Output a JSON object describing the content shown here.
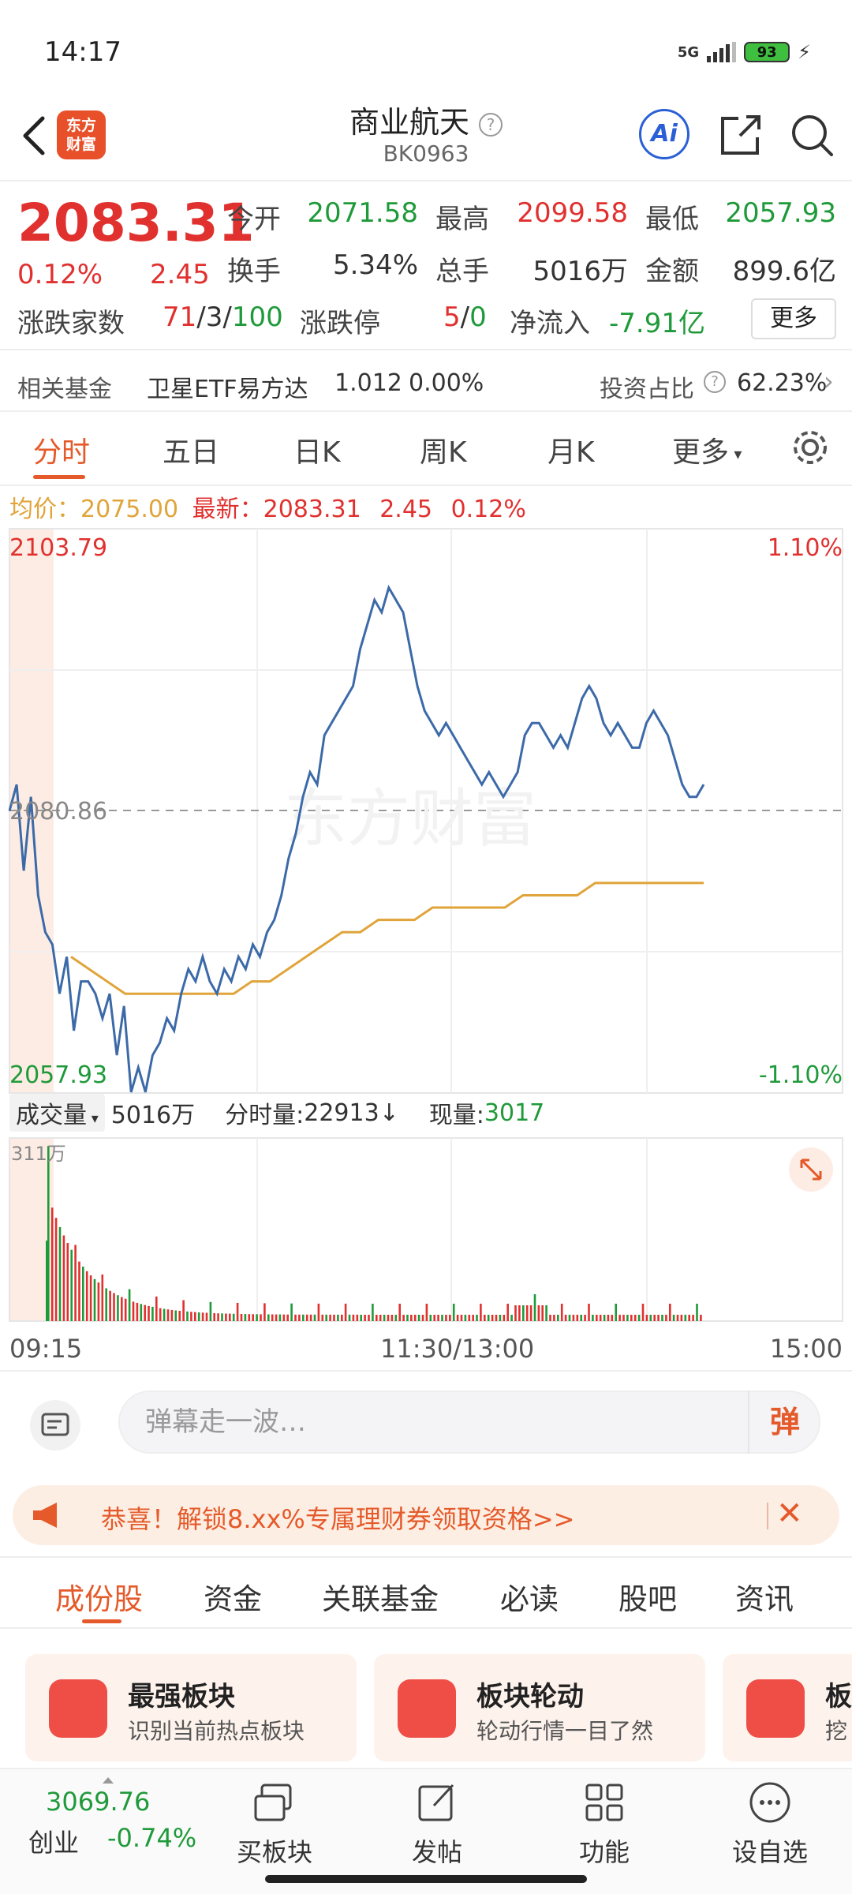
{
  "status_bar": {
    "time": "14:17",
    "network": "5G",
    "battery": "93"
  },
  "header": {
    "logo_text_1": "东方",
    "logo_text_2": "财富",
    "title": "商业航天",
    "code": "BK0963",
    "ai_label": "Ai"
  },
  "quote": {
    "price": "2083.31",
    "pct": "0.12%",
    "change": "2.45",
    "rows": [
      [
        {
          "label": "今开",
          "value": "2071.58",
          "color": "green"
        },
        {
          "label": "最高",
          "value": "2099.58",
          "color": "red"
        },
        {
          "label": "最低",
          "value": "2057.93",
          "color": "green"
        }
      ],
      [
        {
          "label": "换手",
          "value": "5.34%",
          "color": "dark"
        },
        {
          "label": "总手",
          "value": "5016万",
          "color": "dark"
        },
        {
          "label": "金额",
          "value": "899.6亿",
          "color": "dark"
        }
      ]
    ],
    "updown_label": "涨跌家数",
    "updown_up": "71",
    "updown_flat": "3",
    "updown_down": "100",
    "limit_label": "涨跌停",
    "limit_up": "5",
    "limit_down": "0",
    "netflow_label": "净流入",
    "netflow_value": "-7.91亿",
    "more_label": "更多"
  },
  "fund_row": {
    "label": "相关基金",
    "fund_name": "卫星ETF易方达",
    "fund_price": "1.012",
    "fund_pct": "0.00%",
    "ratio_label": "投资占比",
    "ratio_value": "62.23%"
  },
  "chart_tabs": [
    "分时",
    "五日",
    "日K",
    "周K",
    "月K",
    "更多"
  ],
  "avg_row": {
    "avg_label": "均价：",
    "avg_value": "2075.00",
    "latest_label": "最新：",
    "latest_value": "2083.31",
    "latest_change": "2.45",
    "latest_pct": "0.12%"
  },
  "chart_labels": {
    "top_left": "2103.79",
    "top_right": "1.10%",
    "mid_left": "2080.86",
    "bottom_left": "2057.93",
    "bottom_right": "-1.10%",
    "watermark": "东方财富"
  },
  "chart_data": {
    "type": "line",
    "ylim": [
      2057.93,
      2103.79
    ],
    "baseline": 2080.86,
    "series": [
      {
        "name": "最新",
        "values": [
          2080.86,
          2083,
          2076,
          2082,
          2074,
          2071,
          2070,
          2066,
          2069,
          2063,
          2067,
          2067,
          2066,
          2064,
          2066,
          2061,
          2065,
          2058,
          2060,
          2058,
          2061,
          2062,
          2064,
          2063,
          2066,
          2068,
          2067,
          2069,
          2067,
          2066,
          2068,
          2067,
          2069,
          2068,
          2070,
          2069,
          2071,
          2072,
          2074,
          2077,
          2079,
          2082,
          2084,
          2083,
          2087,
          2088,
          2089,
          2090,
          2091,
          2094,
          2096,
          2098,
          2097,
          2099,
          2098,
          2097,
          2094,
          2091,
          2089,
          2088,
          2087,
          2088,
          2087,
          2086,
          2085,
          2084,
          2083,
          2084,
          2083,
          2082,
          2083,
          2084,
          2087,
          2088,
          2088,
          2087,
          2086,
          2087,
          2086,
          2088,
          2090,
          2091,
          2090,
          2088,
          2087,
          2088,
          2087,
          2086,
          2086,
          2088,
          2089,
          2088,
          2087,
          2085,
          2083,
          2082,
          2082,
          2083
        ]
      },
      {
        "name": "均价",
        "values": [
          2069,
          2068,
          2067,
          2066,
          2066,
          2066,
          2066,
          2066,
          2066,
          2066,
          2067,
          2067,
          2068,
          2069,
          2070,
          2071,
          2071,
          2072,
          2072,
          2072,
          2073,
          2073,
          2073,
          2073,
          2073,
          2074,
          2074,
          2074,
          2074,
          2075,
          2075,
          2075,
          2075,
          2075,
          2075,
          2075
        ]
      }
    ]
  },
  "volume": {
    "label": "成交量",
    "total": "5016万",
    "minute_label": "分时量:",
    "minute_value": "22913↓",
    "current_label": "现量:",
    "current_value": "3017",
    "scale_label": "311万"
  },
  "time_axis": {
    "start": "09:15",
    "mid": "11:30/13:00",
    "end": "15:00"
  },
  "danmu": {
    "placeholder": "弹幕走一波…",
    "send_label": "弹"
  },
  "promo": {
    "text": "恭喜！解锁8.xx%专属理财券领取资格>>"
  },
  "info_tabs": [
    "成份股",
    "资金",
    "关联基金",
    "必读",
    "股吧",
    "资讯"
  ],
  "cards": [
    {
      "title": "最强板块",
      "desc": "识别当前热点板块"
    },
    {
      "title": "板块轮动",
      "desc": "轮动行情一目了然"
    },
    {
      "title": "板",
      "desc": "挖"
    }
  ],
  "bottom_nav": {
    "index_value": "3069.76",
    "index_name": "创业",
    "index_pct": "-0.74%",
    "items": [
      "买板块",
      "发帖",
      "功能",
      "设自选"
    ]
  },
  "colors": {
    "up": "#e0312f",
    "down": "#1f9a3a",
    "accent": "#e55a2a",
    "price_line": "#3c6aa8",
    "avg_line": "#e0a43a"
  }
}
